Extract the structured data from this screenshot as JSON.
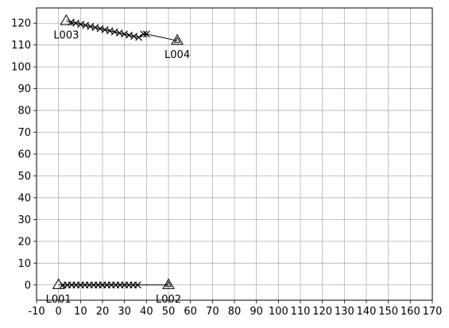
{
  "chart_data": {
    "type": "scatter",
    "title": "",
    "xlabel": "",
    "ylabel": "",
    "xlim": [
      -10,
      170
    ],
    "ylim": [
      -7,
      127
    ],
    "x_ticks": [
      -10,
      0,
      10,
      20,
      30,
      40,
      50,
      60,
      70,
      80,
      90,
      100,
      110,
      120,
      130,
      140,
      150,
      160,
      170
    ],
    "y_ticks": [
      0,
      10,
      20,
      30,
      40,
      50,
      60,
      70,
      80,
      90,
      100,
      110,
      120
    ],
    "grid": true,
    "legend": "none",
    "colors": {
      "line": "#000000",
      "grid": "#b0b0b0",
      "background": "#ffffff"
    },
    "series": [
      {
        "from": "L001",
        "to": "L002",
        "x": [
          0,
          2,
          4,
          6,
          8,
          10,
          12,
          14,
          16,
          18,
          20,
          22,
          24,
          26,
          28,
          30,
          32,
          34,
          36,
          50
        ],
        "y": [
          0,
          0,
          0,
          0,
          0,
          0,
          0,
          0,
          0,
          0,
          0,
          0,
          0,
          0,
          0,
          0,
          0,
          0,
          0,
          0
        ]
      },
      {
        "from": "L003",
        "to": "L004",
        "x": [
          3.5,
          5.7,
          7.9,
          10.1,
          12.3,
          14.5,
          16.7,
          18.9,
          21.1,
          23.3,
          25.5,
          27.7,
          29.9,
          32.1,
          34.3,
          36.5,
          38.7,
          40.0,
          54
        ],
        "y": [
          121,
          120.5,
          120.0,
          119.5,
          119.0,
          118.5,
          118.0,
          117.5,
          117.0,
          116.5,
          116.0,
          115.5,
          115.0,
          114.5,
          114.0,
          113.5,
          115.0,
          115.0,
          112
        ]
      }
    ],
    "labels": [
      {
        "text": "L001",
        "x": 0,
        "y": 0
      },
      {
        "text": "L002",
        "x": 50,
        "y": 0
      },
      {
        "text": "L003",
        "x": 3.5,
        "y": 121
      },
      {
        "text": "L004",
        "x": 54,
        "y": 112
      }
    ]
  }
}
